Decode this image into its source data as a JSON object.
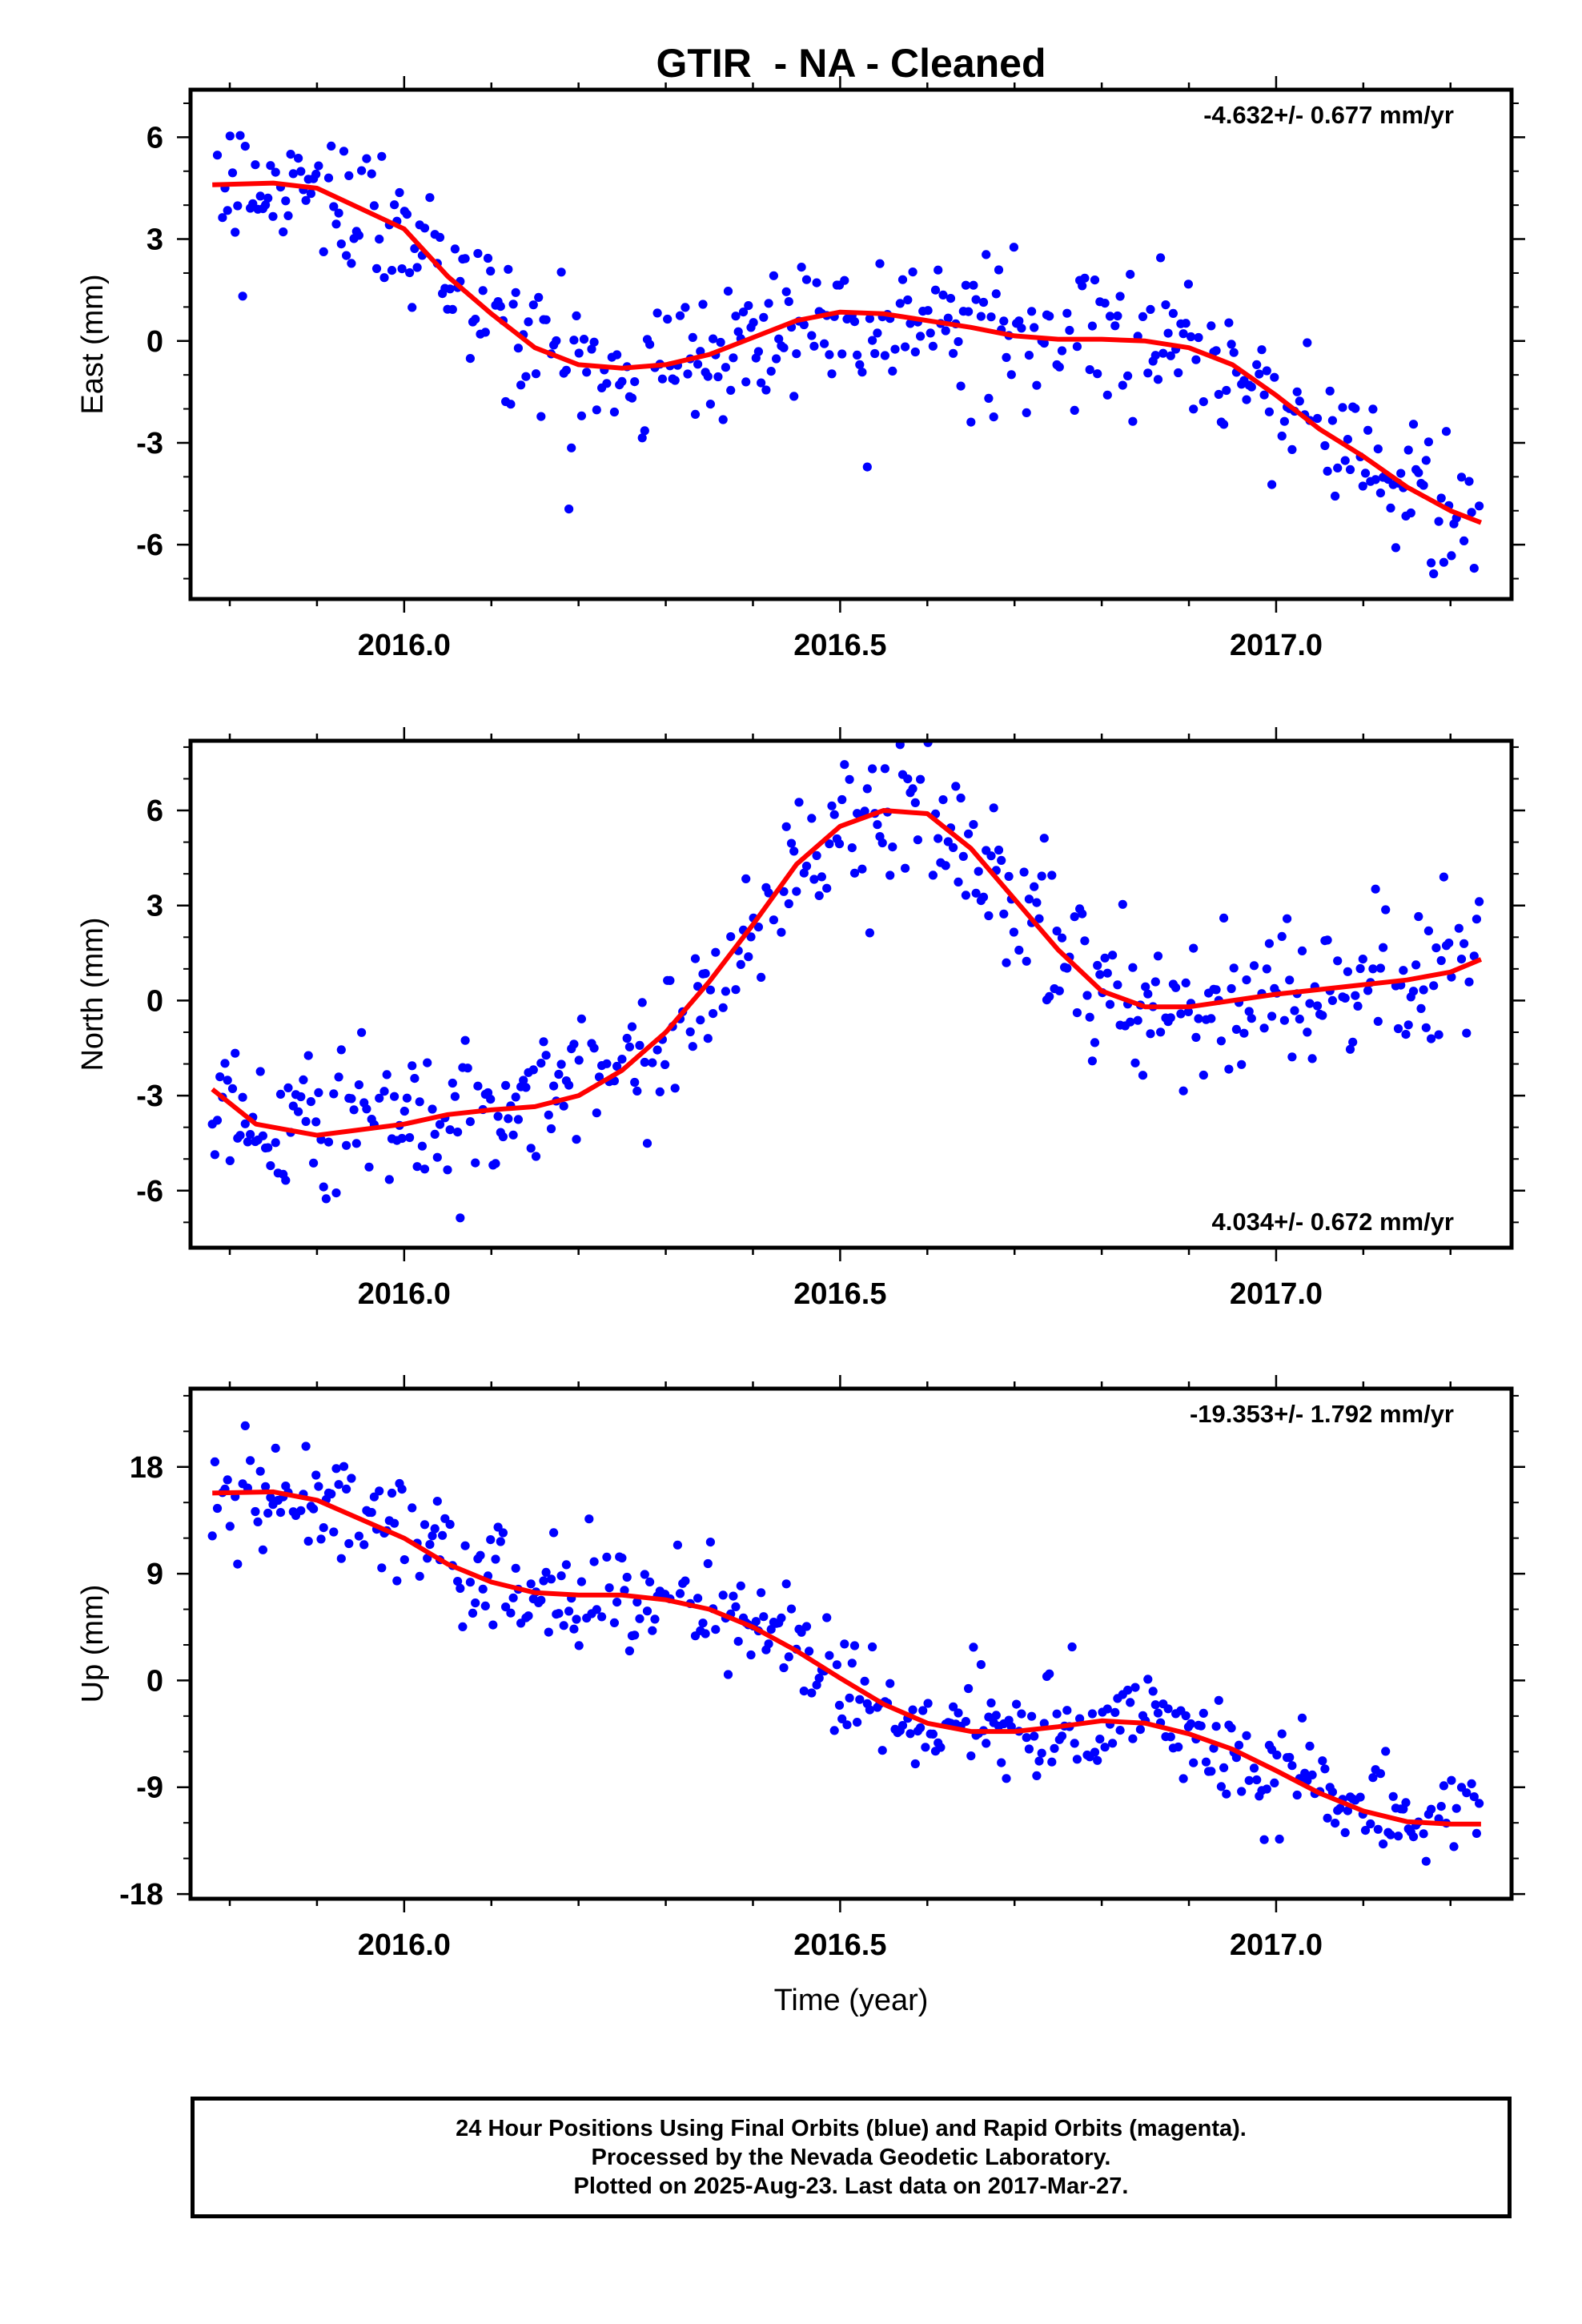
{
  "title": "GTIR  - NA - Cleaned",
  "x_axis": {
    "label": "Time (year)",
    "ticks": [
      "2016.0",
      "2016.5",
      "2017.0"
    ]
  },
  "colors": {
    "points": "#0000ff",
    "fit": "#ff0000",
    "axes": "#000000"
  },
  "chart_data": [
    {
      "type": "scatter",
      "name": "East",
      "ylabel": "East (mm)",
      "rate_label": "-4.632+/- 0.677 mm/yr",
      "rate_position": "top-right",
      "xlim": [
        2015.755,
        2017.27
      ],
      "ylim": [
        -7.6,
        7.4
      ],
      "y_ticks": [
        "6",
        "3",
        "0",
        "-3",
        "-6"
      ],
      "y_tick_values": [
        6,
        3,
        0,
        -3,
        -6
      ],
      "points_x_range": [
        2015.78,
        2017.235
      ],
      "series": [
        {
          "name": "",
          "kind": "trend",
          "x": [
            2015.78,
            2015.85,
            2015.9,
            2016.0,
            2016.05,
            2016.1,
            2016.15,
            2016.2,
            2016.25,
            2016.3,
            2016.35,
            2016.4,
            2016.45,
            2016.5,
            2016.55,
            2016.6,
            2016.65,
            2016.7,
            2016.75,
            2016.8,
            2016.85,
            2016.9,
            2016.95,
            2017.0,
            2017.05,
            2017.1,
            2017.15,
            2017.2,
            2017.235
          ],
          "y": [
            4.6,
            4.65,
            4.5,
            3.3,
            1.9,
            0.8,
            -0.2,
            -0.7,
            -0.8,
            -0.7,
            -0.4,
            0.1,
            0.6,
            0.85,
            0.8,
            0.6,
            0.4,
            0.15,
            0.05,
            0.05,
            0.0,
            -0.2,
            -0.7,
            -1.6,
            -2.6,
            -3.4,
            -4.3,
            -5.0,
            -5.35
          ]
        }
      ]
    },
    {
      "type": "scatter",
      "name": "North",
      "ylabel": "North (mm)",
      "rate_label": "4.034+/- 0.672 mm/yr",
      "rate_position": "bottom-right",
      "xlim": [
        2015.755,
        2017.27
      ],
      "ylim": [
        -7.8,
        8.2
      ],
      "y_ticks": [
        "6",
        "3",
        "0",
        "-3",
        "-6"
      ],
      "y_tick_values": [
        6,
        3,
        0,
        -3,
        -6
      ],
      "points_x_range": [
        2015.78,
        2017.235
      ],
      "series": [
        {
          "name": "",
          "kind": "trend",
          "x": [
            2015.78,
            2015.83,
            2015.9,
            2016.0,
            2016.05,
            2016.1,
            2016.15,
            2016.2,
            2016.25,
            2016.3,
            2016.35,
            2016.4,
            2016.45,
            2016.5,
            2016.55,
            2016.6,
            2016.65,
            2016.7,
            2016.75,
            2016.8,
            2016.85,
            2016.9,
            2016.95,
            2017.0,
            2017.05,
            2017.1,
            2017.15,
            2017.2,
            2017.235
          ],
          "y": [
            -2.8,
            -3.9,
            -4.25,
            -3.9,
            -3.6,
            -3.45,
            -3.35,
            -3.0,
            -2.2,
            -1.0,
            0.6,
            2.4,
            4.3,
            5.5,
            6.0,
            5.9,
            4.8,
            3.2,
            1.6,
            0.3,
            -0.2,
            -0.2,
            0.0,
            0.2,
            0.35,
            0.5,
            0.65,
            0.9,
            1.3
          ]
        }
      ]
    },
    {
      "type": "scatter",
      "name": "Up",
      "ylabel": "Up (mm)",
      "rate_label": "-19.353+/- 1.792 mm/yr",
      "rate_position": "top-right",
      "xlim": [
        2015.755,
        2017.27
      ],
      "ylim": [
        -18.4,
        24.6
      ],
      "y_ticks": [
        "18",
        "9",
        "0",
        "-9",
        "-18"
      ],
      "y_tick_values": [
        18,
        9,
        0,
        -9,
        -18
      ],
      "points_x_range": [
        2015.78,
        2017.235
      ],
      "series": [
        {
          "name": "",
          "kind": "trend",
          "x": [
            2015.78,
            2015.85,
            2015.9,
            2016.0,
            2016.05,
            2016.1,
            2016.15,
            2016.2,
            2016.25,
            2016.3,
            2016.35,
            2016.4,
            2016.45,
            2016.5,
            2016.55,
            2016.6,
            2016.65,
            2016.7,
            2016.75,
            2016.8,
            2016.85,
            2016.9,
            2016.95,
            2017.0,
            2017.05,
            2017.1,
            2017.15,
            2017.2,
            2017.235
          ],
          "y": [
            15.8,
            15.9,
            15.2,
            12.0,
            9.8,
            8.3,
            7.4,
            7.2,
            7.2,
            6.8,
            6.0,
            4.5,
            2.5,
            0.2,
            -2.0,
            -3.6,
            -4.3,
            -4.3,
            -3.9,
            -3.4,
            -3.6,
            -4.5,
            -5.8,
            -7.6,
            -9.5,
            -11.0,
            -11.9,
            -12.1,
            -12.1
          ]
        }
      ]
    }
  ],
  "footer": {
    "line1": "24 Hour Positions Using Final Orbits (blue) and Rapid Orbits (magenta).",
    "line2": "Processed by the Nevada Geodetic Laboratory.",
    "line3": "Plotted on 2025-Aug-23. Last data on 2017-Mar-27."
  }
}
